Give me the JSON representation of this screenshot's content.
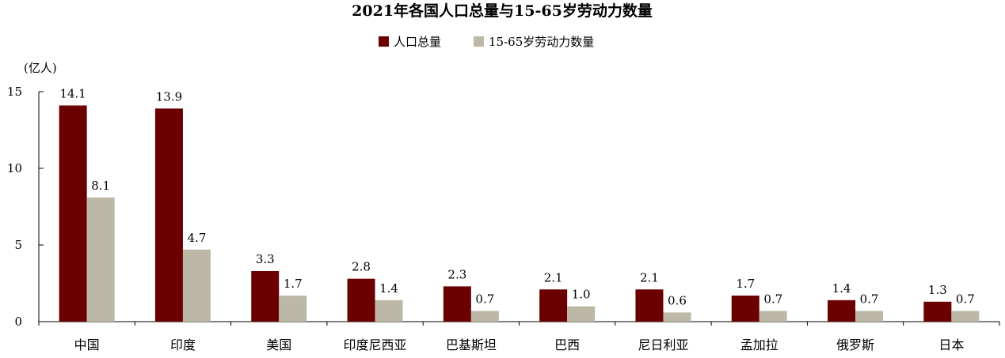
{
  "chart_data": {
    "type": "bar",
    "title": "2021年各国人口总量与15-65岁劳动力数量",
    "ylabel": "(亿人)",
    "xlabel": "",
    "ylim": [
      0,
      15
    ],
    "yticks": [
      0,
      5,
      10,
      15
    ],
    "legend_position": "top-center",
    "grid": false,
    "categories": [
      "中国",
      "印度",
      "美国",
      "印度尼西亚",
      "巴基斯坦",
      "巴西",
      "尼日利亚",
      "孟加拉",
      "俄罗斯",
      "日本"
    ],
    "series": [
      {
        "name": "人口总量",
        "color": "#6b0000",
        "values": [
          14.1,
          13.9,
          3.3,
          2.8,
          2.3,
          2.1,
          2.1,
          1.7,
          1.4,
          1.3
        ]
      },
      {
        "name": "15-65岁劳动力数量",
        "color": "#bdb8a6",
        "values": [
          8.1,
          4.7,
          1.7,
          1.4,
          0.7,
          1.0,
          0.6,
          0.7,
          0.7,
          0.7
        ]
      }
    ]
  }
}
